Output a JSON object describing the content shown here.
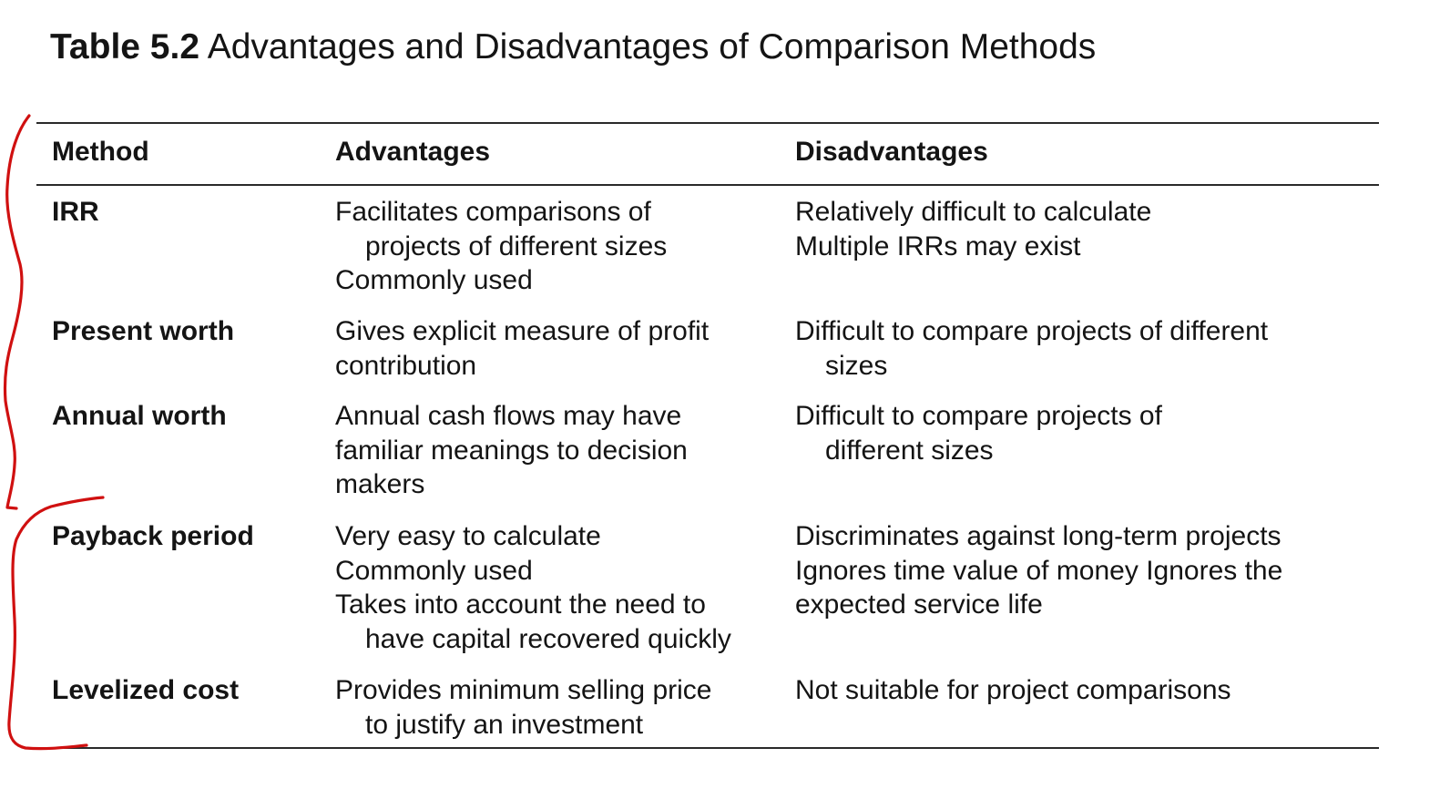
{
  "title": {
    "label": "Table 5.2",
    "text": " Advantages and Disadvantages of Comparison Methods"
  },
  "header": {
    "method": "Method",
    "advantages": "Advantages",
    "disadvantages": "Disadvantages"
  },
  "rows": [
    {
      "method": "IRR",
      "advantages": [
        {
          "text": "Facilitates comparisons of",
          "indent": false
        },
        {
          "text": "projects of different sizes",
          "indent": true
        },
        {
          "text": "Commonly used",
          "indent": false
        }
      ],
      "disadvantages": [
        {
          "text": "Relatively difficult to calculate",
          "indent": false
        },
        {
          "text": "Multiple IRRs may exist",
          "indent": false
        }
      ]
    },
    {
      "method": "Present worth",
      "advantages": [
        {
          "text": "Gives explicit measure of profit",
          "indent": false
        },
        {
          "text": "contribution",
          "indent": false
        }
      ],
      "disadvantages": [
        {
          "text": "Difficult to compare projects of different",
          "indent": false
        },
        {
          "text": "sizes",
          "indent": true
        }
      ]
    },
    {
      "method": "Annual worth",
      "advantages": [
        {
          "text": "Annual cash flows may have",
          "indent": false
        },
        {
          "text": "familiar meanings to decision",
          "indent": false
        },
        {
          "text": "makers",
          "indent": false
        }
      ],
      "disadvantages": [
        {
          "text": "Difficult to compare projects of",
          "indent": false
        },
        {
          "text": "different sizes",
          "indent": true
        }
      ]
    },
    {
      "method": "Payback period",
      "advantages": [
        {
          "text": "Very easy to calculate",
          "indent": false
        },
        {
          "text": "Commonly used",
          "indent": false
        },
        {
          "text": "Takes into account the need to",
          "indent": false
        },
        {
          "text": "have capital recovered quickly",
          "indent": true
        }
      ],
      "disadvantages": [
        {
          "text": "Discriminates against long-term projects",
          "indent": false
        },
        {
          "text": "Ignores time value of money Ignores the",
          "indent": false
        },
        {
          "text": "expected service life",
          "indent": false
        }
      ]
    },
    {
      "method": "Levelized cost",
      "advantages": [
        {
          "text": "Provides minimum selling price",
          "indent": false
        },
        {
          "text": "to justify an investment",
          "indent": true
        }
      ],
      "disadvantages": [
        {
          "text": "Not suitable for project comparisons",
          "indent": false
        }
      ]
    }
  ],
  "annotation_color": "#d01010"
}
